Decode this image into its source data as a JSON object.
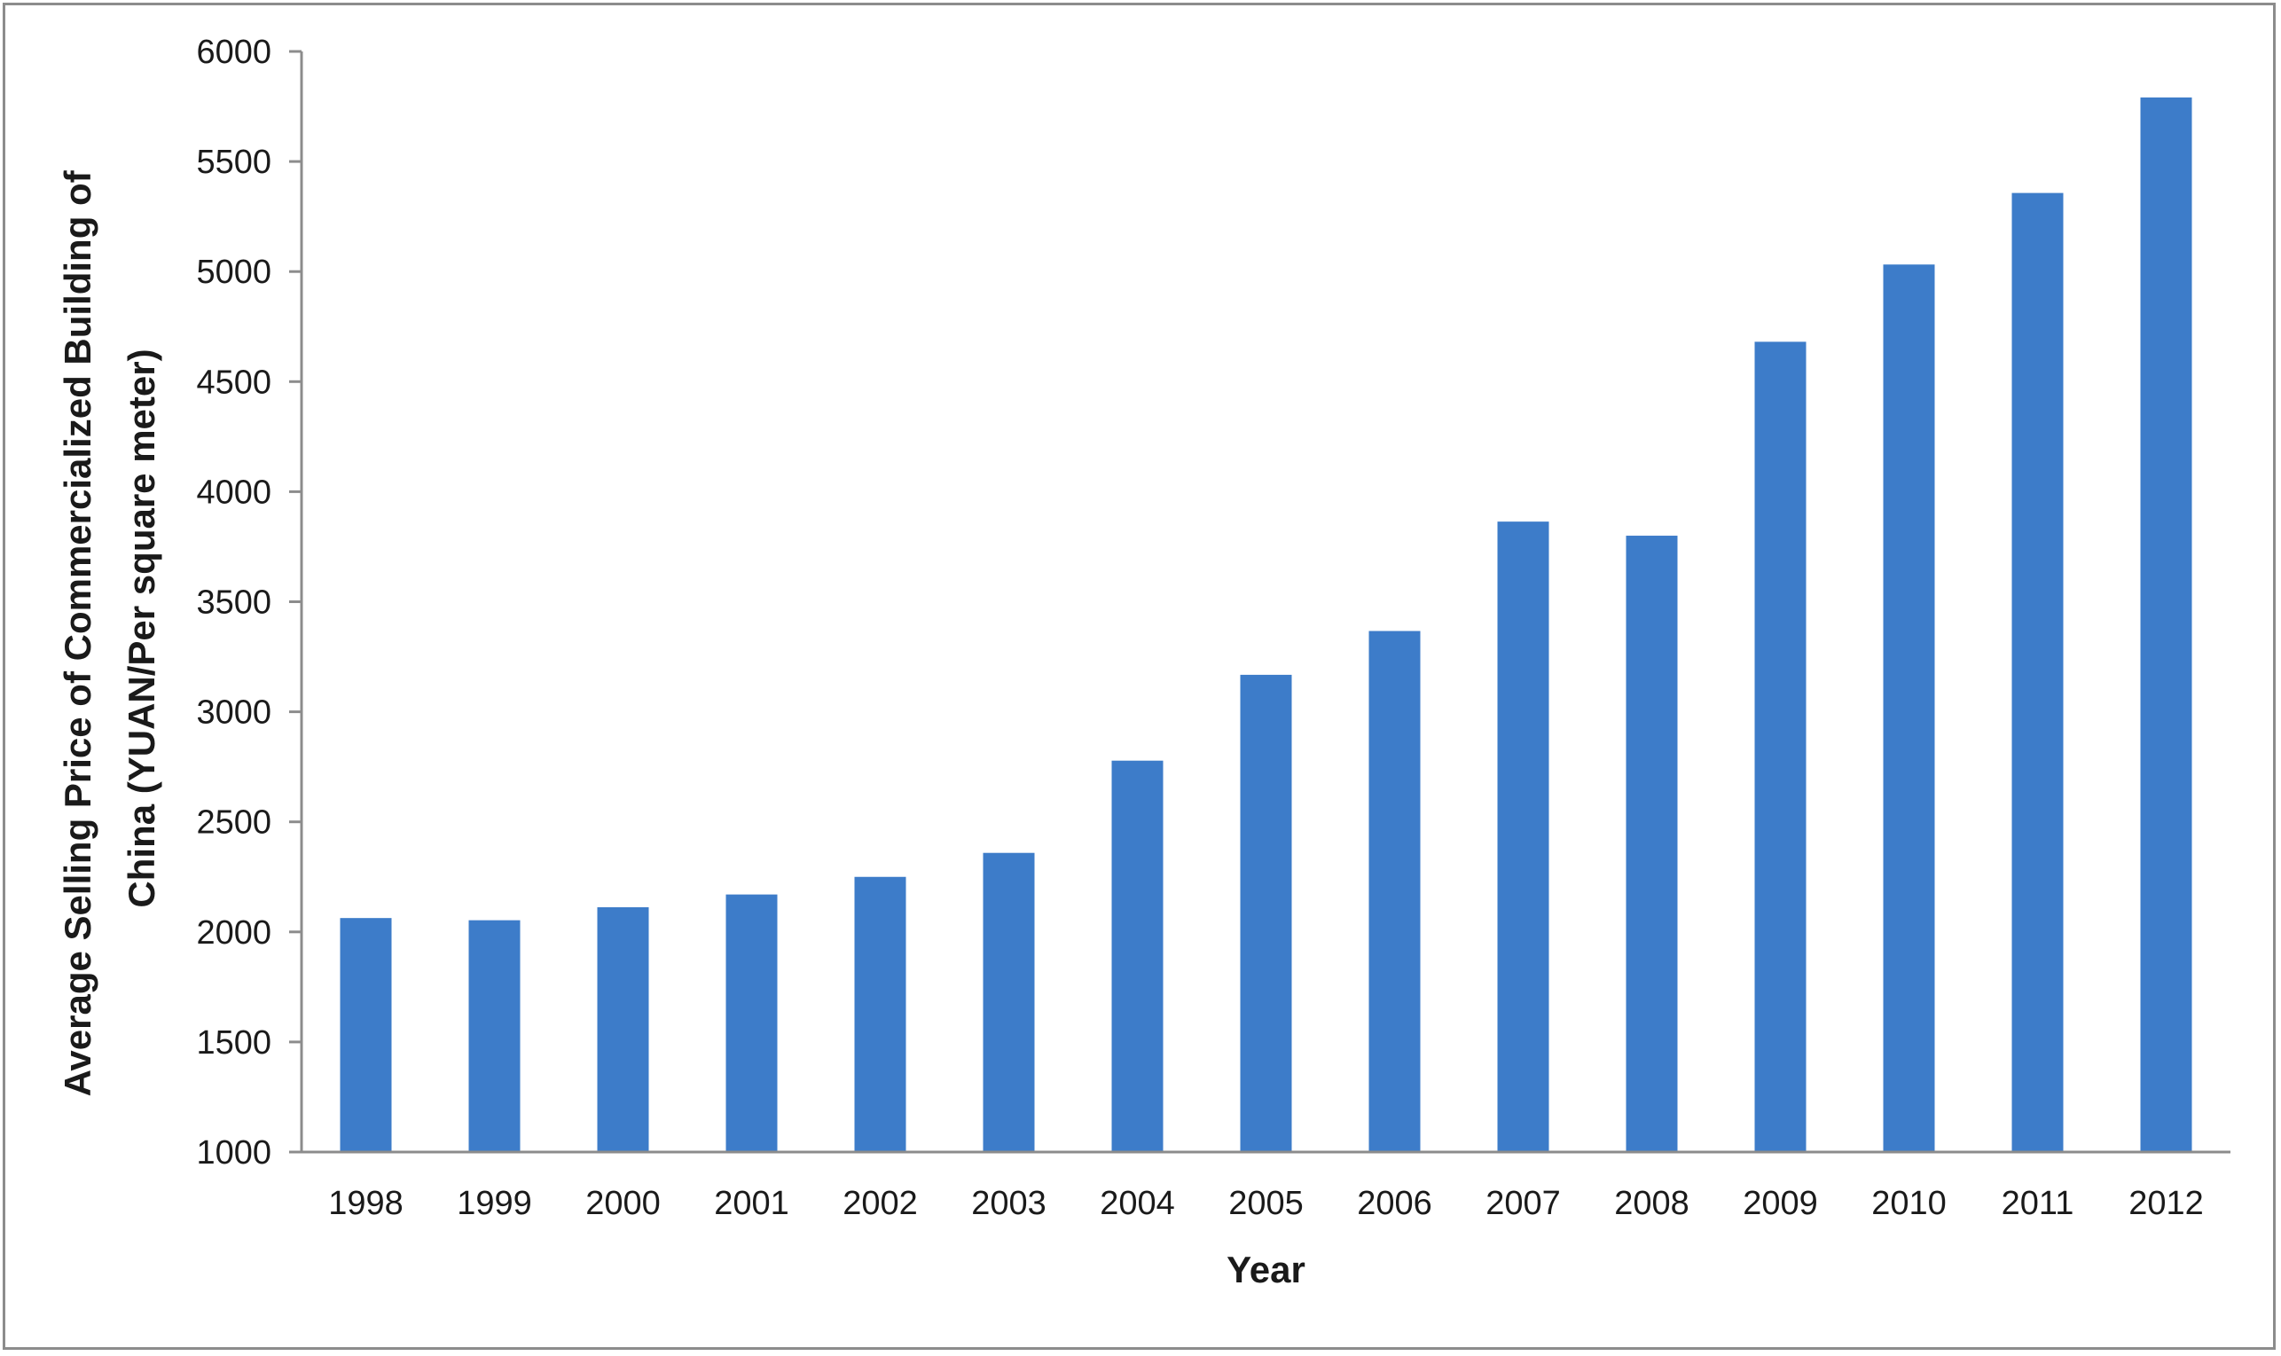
{
  "chart_data": {
    "type": "bar",
    "title": "",
    "categories": [
      "1998",
      "1999",
      "2000",
      "2001",
      "2002",
      "2003",
      "2004",
      "2005",
      "2006",
      "2007",
      "2008",
      "2009",
      "2010",
      "2011",
      "2012"
    ],
    "values": [
      2063,
      2053,
      2112,
      2170,
      2250,
      2359,
      2778,
      3168,
      3367,
      3864,
      3800,
      4681,
      5032,
      5357,
      5791
    ],
    "xlabel": "Year",
    "ylabel_lines": [
      "Average Selling Price of Commercialized Building of",
      "China (YUAN/Per square meter)"
    ],
    "ylim": [
      1000,
      6000
    ],
    "yticks": [
      "1000",
      "1500",
      "2000",
      "2500",
      "3000",
      "3500",
      "4000",
      "4500",
      "5000",
      "5500",
      "6000"
    ],
    "grid": false,
    "legend": "none",
    "colors": {
      "bar": "#3d7cc9",
      "axis": "#8c8c8c",
      "text": "#1a1a1a"
    }
  }
}
